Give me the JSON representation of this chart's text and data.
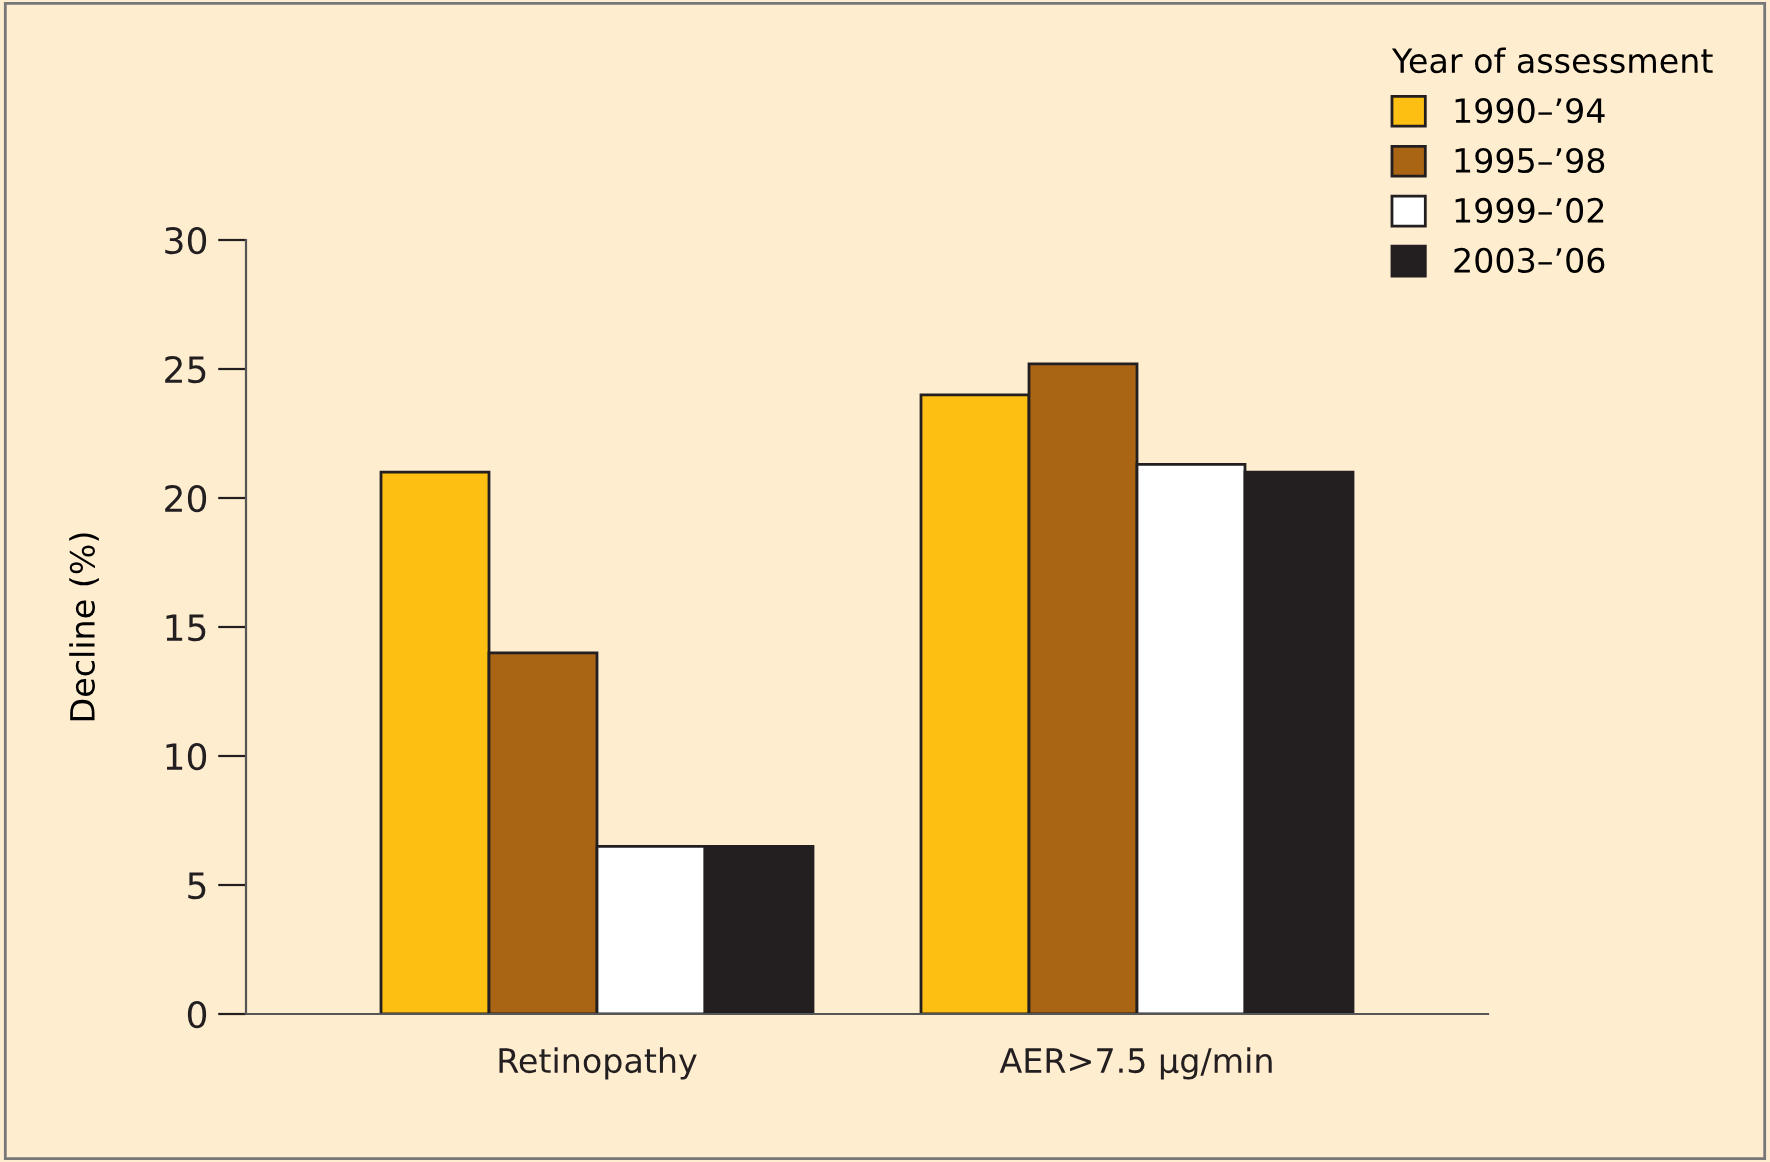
{
  "chart_data": {
    "type": "bar",
    "ylabel": "Decline (%)",
    "legend_title": "Year of assessment",
    "categories": [
      "Retinopathy",
      "AER>7.5 µg/min"
    ],
    "series": [
      {
        "name": "1990–’94",
        "color": "#fcbf12",
        "values": [
          21,
          24
        ]
      },
      {
        "name": "1995–’98",
        "color": "#a96514",
        "values": [
          14,
          25.2
        ]
      },
      {
        "name": "1999–’02",
        "color": "#ffffff",
        "values": [
          6.5,
          21.3
        ]
      },
      {
        "name": "2003–’06",
        "color": "#231f20",
        "values": [
          6.5,
          21
        ]
      }
    ],
    "ylim": [
      0,
      30
    ],
    "yticks": [
      0,
      5,
      10,
      15,
      20,
      25,
      30
    ],
    "grid": false,
    "legend": "top right"
  }
}
